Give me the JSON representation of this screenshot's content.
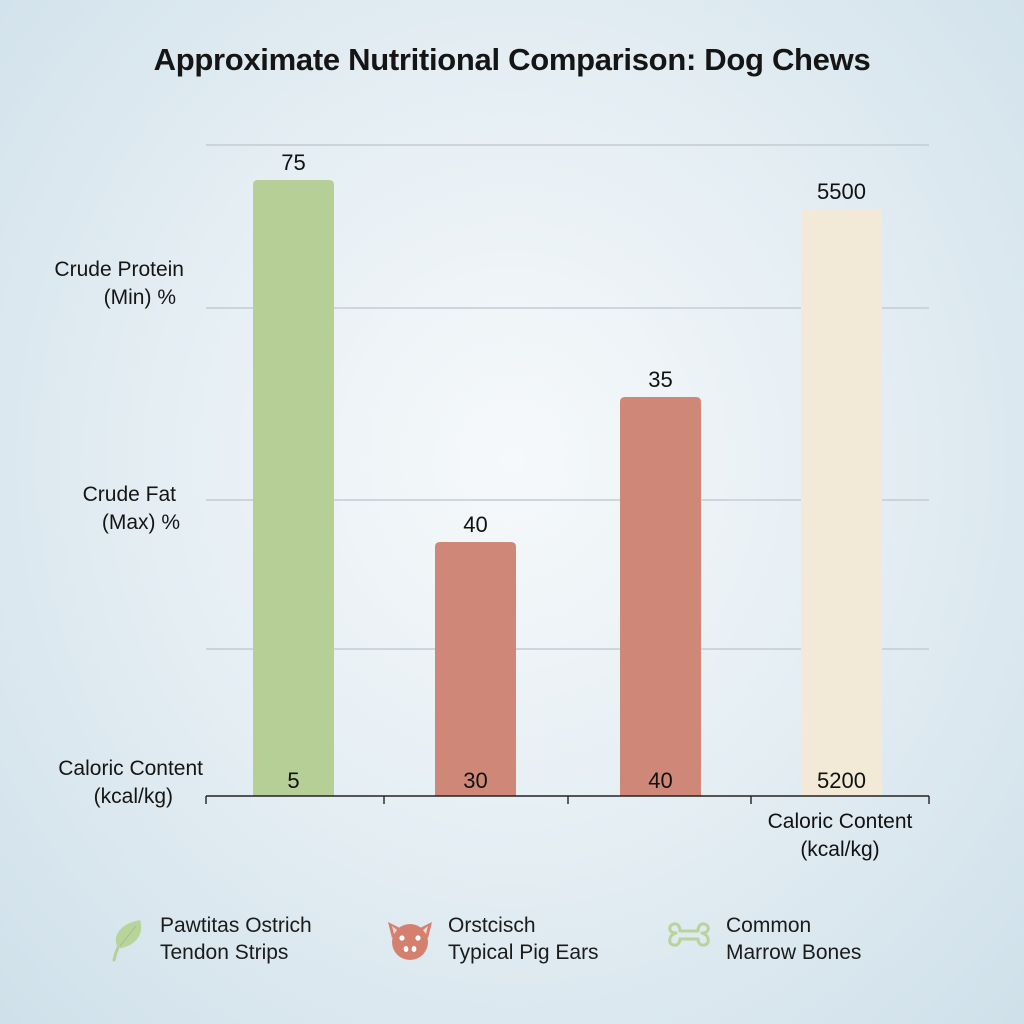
{
  "chart_data": {
    "type": "bar",
    "title": "Approximate Nutritional Comparison: Dog Chews",
    "y_axis_labels": [
      {
        "line1": "Crude Protein",
        "line2": "(Min) %"
      },
      {
        "line1": "Crude Fat",
        "line2": "(Max) %"
      },
      {
        "line1": "Caloric Content",
        "line2": "(kcal/kg)"
      }
    ],
    "x_axis_label": {
      "line1": "Caloric Content",
      "line2": "(kcal/kg)"
    },
    "grid": true,
    "bars": [
      {
        "top_label": "75",
        "bottom_label": "5",
        "color": "#b5cf97",
        "series": "Pawtitas Ostrich Tendon Strips"
      },
      {
        "top_label": "40",
        "bottom_label": "30",
        "color": "#cf8878",
        "series": "Orstcisch Typical Pig Ears"
      },
      {
        "top_label": "35",
        "bottom_label": "40",
        "color": "#cf8878",
        "series": "Orstcisch Typical Pig Ears"
      },
      {
        "top_label": "5500",
        "bottom_label": "5200",
        "color": "#f2ead6",
        "series": "Common Marrow Bones"
      }
    ],
    "legend": [
      {
        "line1": "Pawtitas Ostrich",
        "line2": "Tendon Strips",
        "icon": "leaf-icon",
        "color": "#b5cf97"
      },
      {
        "line1": "Orstcisch",
        "line2": "Typical Pig Ears",
        "icon": "pig-icon",
        "color": "#d5806f"
      },
      {
        "line1": "Common",
        "line2": "Marrow Bones",
        "icon": "bone-icon",
        "color": "#b9d39a"
      }
    ],
    "legend_position": "bottom"
  }
}
